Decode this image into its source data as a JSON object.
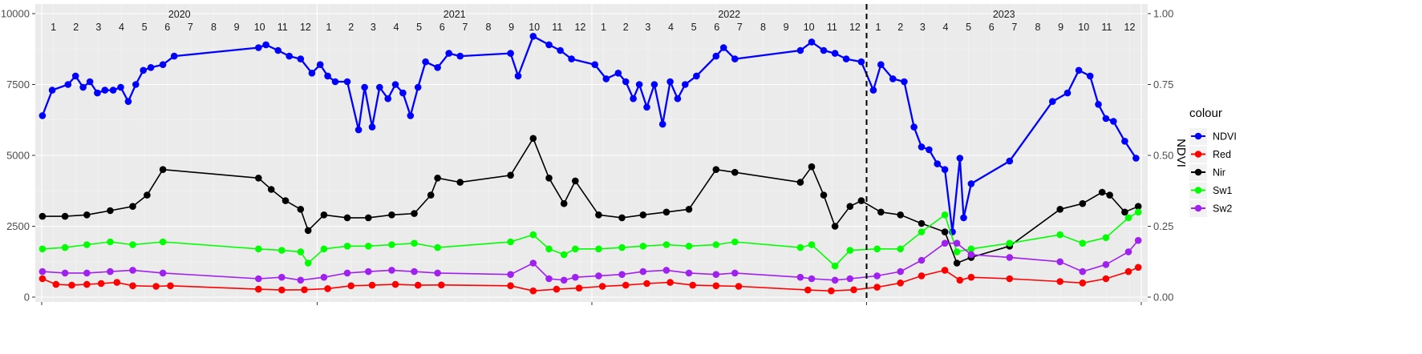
{
  "chart_data": {
    "type": "line",
    "x_range": [
      "2020-01-01",
      "2024-01-01"
    ],
    "ylim_left": [
      0,
      10000
    ],
    "ylim_right": [
      0,
      1
    ],
    "yticks_left": [
      "0",
      "2500",
      "5000",
      "7500",
      "10000"
    ],
    "yticks_right": [
      "0.00",
      "0.25",
      "0.50",
      "0.75",
      "1.00"
    ],
    "ylabel_right": "NDVI",
    "years": [
      "2020",
      "2021",
      "2022",
      "2023"
    ],
    "months": [
      "1",
      "2",
      "3",
      "4",
      "5",
      "6",
      "7",
      "8",
      "9",
      "10",
      "11",
      "12"
    ],
    "vline_date": "2023-01-01",
    "grid": true,
    "legend": {
      "title": "colour",
      "placement": "right",
      "entries": [
        "NDVI",
        "Red",
        "Nir",
        "Sw1",
        "Sw2"
      ]
    },
    "series": [
      {
        "name": "NDVI",
        "color": "#0000ff",
        "axis": "right",
        "points": [
          [
            "2020-01-02",
            0.64
          ],
          [
            "2020-01-15",
            0.73
          ],
          [
            "2020-02-05",
            0.75
          ],
          [
            "2020-02-15",
            0.78
          ],
          [
            "2020-02-25",
            0.74
          ],
          [
            "2020-03-05",
            0.76
          ],
          [
            "2020-03-15",
            0.72
          ],
          [
            "2020-03-25",
            0.73
          ],
          [
            "2020-04-05",
            0.73
          ],
          [
            "2020-04-15",
            0.74
          ],
          [
            "2020-04-25",
            0.69
          ],
          [
            "2020-05-05",
            0.75
          ],
          [
            "2020-05-15",
            0.8
          ],
          [
            "2020-05-25",
            0.81
          ],
          [
            "2020-06-10",
            0.82
          ],
          [
            "2020-06-25",
            0.85
          ],
          [
            "2020-10-15",
            0.88
          ],
          [
            "2020-10-25",
            0.89
          ],
          [
            "2020-11-10",
            0.87
          ],
          [
            "2020-11-25",
            0.85
          ],
          [
            "2020-12-10",
            0.84
          ],
          [
            "2020-12-25",
            0.79
          ],
          [
            "2021-01-05",
            0.82
          ],
          [
            "2021-01-15",
            0.78
          ],
          [
            "2021-01-25",
            0.76
          ],
          [
            "2021-02-10",
            0.76
          ],
          [
            "2021-02-25",
            0.59
          ],
          [
            "2021-03-05",
            0.74
          ],
          [
            "2021-03-15",
            0.6
          ],
          [
            "2021-03-25",
            0.74
          ],
          [
            "2021-04-05",
            0.7
          ],
          [
            "2021-04-15",
            0.75
          ],
          [
            "2021-04-25",
            0.72
          ],
          [
            "2021-05-05",
            0.64
          ],
          [
            "2021-05-15",
            0.74
          ],
          [
            "2021-05-25",
            0.83
          ],
          [
            "2021-06-10",
            0.81
          ],
          [
            "2021-06-25",
            0.86
          ],
          [
            "2021-07-10",
            0.85
          ],
          [
            "2021-09-15",
            0.86
          ],
          [
            "2021-09-25",
            0.78
          ],
          [
            "2021-10-15",
            0.92
          ],
          [
            "2021-11-05",
            0.89
          ],
          [
            "2021-11-20",
            0.87
          ],
          [
            "2021-12-05",
            0.84
          ],
          [
            "2022-01-05",
            0.82
          ],
          [
            "2022-01-20",
            0.77
          ],
          [
            "2022-02-05",
            0.79
          ],
          [
            "2022-02-15",
            0.76
          ],
          [
            "2022-02-25",
            0.7
          ],
          [
            "2022-03-05",
            0.75
          ],
          [
            "2022-03-15",
            0.67
          ],
          [
            "2022-03-25",
            0.75
          ],
          [
            "2022-04-05",
            0.61
          ],
          [
            "2022-04-15",
            0.76
          ],
          [
            "2022-04-25",
            0.7
          ],
          [
            "2022-05-05",
            0.75
          ],
          [
            "2022-05-20",
            0.78
          ],
          [
            "2022-06-15",
            0.85
          ],
          [
            "2022-06-25",
            0.88
          ],
          [
            "2022-07-10",
            0.84
          ],
          [
            "2022-10-05",
            0.87
          ],
          [
            "2022-10-20",
            0.9
          ],
          [
            "2022-11-05",
            0.87
          ],
          [
            "2022-11-20",
            0.86
          ],
          [
            "2022-12-05",
            0.84
          ],
          [
            "2022-12-25",
            0.83
          ],
          [
            "2023-01-10",
            0.73
          ],
          [
            "2023-01-20",
            0.82
          ],
          [
            "2023-02-05",
            0.77
          ],
          [
            "2023-02-20",
            0.76
          ],
          [
            "2023-03-05",
            0.6
          ],
          [
            "2023-03-15",
            0.53
          ],
          [
            "2023-03-25",
            0.52
          ],
          [
            "2023-04-05",
            0.47
          ],
          [
            "2023-04-15",
            0.45
          ],
          [
            "2023-04-25",
            0.23
          ],
          [
            "2023-05-05",
            0.49
          ],
          [
            "2023-05-10",
            0.28
          ],
          [
            "2023-05-20",
            0.4
          ],
          [
            "2023-07-10",
            0.48
          ],
          [
            "2023-09-05",
            0.69
          ],
          [
            "2023-09-25",
            0.72
          ],
          [
            "2023-10-10",
            0.8
          ],
          [
            "2023-10-25",
            0.78
          ],
          [
            "2023-11-05",
            0.68
          ],
          [
            "2023-11-15",
            0.63
          ],
          [
            "2023-11-25",
            0.62
          ],
          [
            "2023-12-10",
            0.55
          ],
          [
            "2023-12-25",
            0.49
          ]
        ]
      },
      {
        "name": "Red",
        "color": "#ff0000",
        "axis": "left",
        "points": [
          [
            "2020-01-02",
            650
          ],
          [
            "2020-01-20",
            450
          ],
          [
            "2020-02-10",
            420
          ],
          [
            "2020-03-01",
            450
          ],
          [
            "2020-03-20",
            480
          ],
          [
            "2020-04-10",
            520
          ],
          [
            "2020-05-01",
            400
          ],
          [
            "2020-06-01",
            380
          ],
          [
            "2020-06-20",
            400
          ],
          [
            "2020-10-15",
            280
          ],
          [
            "2020-11-15",
            250
          ],
          [
            "2020-12-15",
            260
          ],
          [
            "2021-01-15",
            300
          ],
          [
            "2021-02-15",
            400
          ],
          [
            "2021-03-15",
            420
          ],
          [
            "2021-04-15",
            450
          ],
          [
            "2021-05-15",
            420
          ],
          [
            "2021-06-15",
            430
          ],
          [
            "2021-09-15",
            400
          ],
          [
            "2021-10-15",
            220
          ],
          [
            "2021-11-15",
            280
          ],
          [
            "2021-12-15",
            320
          ],
          [
            "2022-01-15",
            380
          ],
          [
            "2022-02-15",
            420
          ],
          [
            "2022-03-15",
            480
          ],
          [
            "2022-04-15",
            520
          ],
          [
            "2022-05-15",
            420
          ],
          [
            "2022-06-15",
            400
          ],
          [
            "2022-07-15",
            380
          ],
          [
            "2022-10-15",
            250
          ],
          [
            "2022-11-15",
            220
          ],
          [
            "2022-12-15",
            260
          ],
          [
            "2023-01-15",
            350
          ],
          [
            "2023-02-15",
            500
          ],
          [
            "2023-03-15",
            750
          ],
          [
            "2023-04-15",
            950
          ],
          [
            "2023-05-05",
            600
          ],
          [
            "2023-05-20",
            700
          ],
          [
            "2023-07-10",
            650
          ],
          [
            "2023-09-15",
            550
          ],
          [
            "2023-10-15",
            500
          ],
          [
            "2023-11-15",
            650
          ],
          [
            "2023-12-15",
            900
          ],
          [
            "2023-12-28",
            1050
          ]
        ]
      },
      {
        "name": "Nir",
        "color": "#000000",
        "axis": "left",
        "points": [
          [
            "2020-01-02",
            2850
          ],
          [
            "2020-02-01",
            2850
          ],
          [
            "2020-03-01",
            2900
          ],
          [
            "2020-04-01",
            3050
          ],
          [
            "2020-05-01",
            3200
          ],
          [
            "2020-05-20",
            3600
          ],
          [
            "2020-06-10",
            4500
          ],
          [
            "2020-10-15",
            4200
          ],
          [
            "2020-11-01",
            3800
          ],
          [
            "2020-11-20",
            3400
          ],
          [
            "2020-12-10",
            3100
          ],
          [
            "2020-12-20",
            2350
          ],
          [
            "2021-01-10",
            2900
          ],
          [
            "2021-02-10",
            2800
          ],
          [
            "2021-03-10",
            2800
          ],
          [
            "2021-04-10",
            2900
          ],
          [
            "2021-05-10",
            2950
          ],
          [
            "2021-06-01",
            3600
          ],
          [
            "2021-06-10",
            4200
          ],
          [
            "2021-07-10",
            4050
          ],
          [
            "2021-09-15",
            4300
          ],
          [
            "2021-10-15",
            5600
          ],
          [
            "2021-11-05",
            4200
          ],
          [
            "2021-11-25",
            3300
          ],
          [
            "2021-12-10",
            4100
          ],
          [
            "2022-01-10",
            2900
          ],
          [
            "2022-02-10",
            2800
          ],
          [
            "2022-03-10",
            2900
          ],
          [
            "2022-04-10",
            3000
          ],
          [
            "2022-05-10",
            3100
          ],
          [
            "2022-06-15",
            4500
          ],
          [
            "2022-07-10",
            4400
          ],
          [
            "2022-10-05",
            4050
          ],
          [
            "2022-10-20",
            4600
          ],
          [
            "2022-11-05",
            3600
          ],
          [
            "2022-11-20",
            2500
          ],
          [
            "2022-12-10",
            3200
          ],
          [
            "2022-12-25",
            3400
          ],
          [
            "2023-01-20",
            3000
          ],
          [
            "2023-02-15",
            2900
          ],
          [
            "2023-03-15",
            2600
          ],
          [
            "2023-04-15",
            2300
          ],
          [
            "2023-05-01",
            1200
          ],
          [
            "2023-05-20",
            1400
          ],
          [
            "2023-07-10",
            1800
          ],
          [
            "2023-09-15",
            3100
          ],
          [
            "2023-10-15",
            3300
          ],
          [
            "2023-11-10",
            3700
          ],
          [
            "2023-11-20",
            3600
          ],
          [
            "2023-12-10",
            3000
          ],
          [
            "2023-12-28",
            3200
          ]
        ]
      },
      {
        "name": "Sw1",
        "color": "#00ff00",
        "axis": "left",
        "points": [
          [
            "2020-01-02",
            1700
          ],
          [
            "2020-02-01",
            1750
          ],
          [
            "2020-03-01",
            1850
          ],
          [
            "2020-04-01",
            1950
          ],
          [
            "2020-05-01",
            1850
          ],
          [
            "2020-06-10",
            1950
          ],
          [
            "2020-10-15",
            1700
          ],
          [
            "2020-11-15",
            1650
          ],
          [
            "2020-12-10",
            1600
          ],
          [
            "2020-12-20",
            1200
          ],
          [
            "2021-01-10",
            1700
          ],
          [
            "2021-02-10",
            1800
          ],
          [
            "2021-03-10",
            1800
          ],
          [
            "2021-04-10",
            1850
          ],
          [
            "2021-05-10",
            1900
          ],
          [
            "2021-06-10",
            1750
          ],
          [
            "2021-09-15",
            1950
          ],
          [
            "2021-10-15",
            2200
          ],
          [
            "2021-11-05",
            1700
          ],
          [
            "2021-11-25",
            1500
          ],
          [
            "2021-12-10",
            1700
          ],
          [
            "2022-01-10",
            1700
          ],
          [
            "2022-02-10",
            1750
          ],
          [
            "2022-03-10",
            1800
          ],
          [
            "2022-04-10",
            1850
          ],
          [
            "2022-05-10",
            1800
          ],
          [
            "2022-06-15",
            1850
          ],
          [
            "2022-07-10",
            1950
          ],
          [
            "2022-10-05",
            1750
          ],
          [
            "2022-10-20",
            1850
          ],
          [
            "2022-11-20",
            1100
          ],
          [
            "2022-12-10",
            1650
          ],
          [
            "2023-01-15",
            1700
          ],
          [
            "2023-02-15",
            1700
          ],
          [
            "2023-03-15",
            2300
          ],
          [
            "2023-04-15",
            2900
          ],
          [
            "2023-05-01",
            1600
          ],
          [
            "2023-05-20",
            1700
          ],
          [
            "2023-07-10",
            1900
          ],
          [
            "2023-09-15",
            2200
          ],
          [
            "2023-10-15",
            1900
          ],
          [
            "2023-11-15",
            2100
          ],
          [
            "2023-12-15",
            2800
          ],
          [
            "2023-12-28",
            3000
          ]
        ]
      },
      {
        "name": "Sw2",
        "color": "#a020f0",
        "axis": "left",
        "points": [
          [
            "2020-01-02",
            900
          ],
          [
            "2020-02-01",
            850
          ],
          [
            "2020-03-01",
            850
          ],
          [
            "2020-04-01",
            900
          ],
          [
            "2020-05-01",
            950
          ],
          [
            "2020-06-10",
            850
          ],
          [
            "2020-10-15",
            650
          ],
          [
            "2020-11-15",
            700
          ],
          [
            "2020-12-10",
            600
          ],
          [
            "2021-01-10",
            700
          ],
          [
            "2021-02-10",
            850
          ],
          [
            "2021-03-10",
            900
          ],
          [
            "2021-04-10",
            950
          ],
          [
            "2021-05-10",
            900
          ],
          [
            "2021-06-10",
            850
          ],
          [
            "2021-09-15",
            800
          ],
          [
            "2021-10-15",
            1200
          ],
          [
            "2021-11-05",
            650
          ],
          [
            "2021-11-25",
            600
          ],
          [
            "2021-12-10",
            700
          ],
          [
            "2022-01-10",
            750
          ],
          [
            "2022-02-10",
            800
          ],
          [
            "2022-03-10",
            900
          ],
          [
            "2022-04-10",
            950
          ],
          [
            "2022-05-10",
            850
          ],
          [
            "2022-06-15",
            800
          ],
          [
            "2022-07-10",
            850
          ],
          [
            "2022-10-05",
            700
          ],
          [
            "2022-10-20",
            650
          ],
          [
            "2022-11-20",
            600
          ],
          [
            "2022-12-10",
            650
          ],
          [
            "2023-01-15",
            750
          ],
          [
            "2023-02-15",
            900
          ],
          [
            "2023-03-15",
            1300
          ],
          [
            "2023-04-15",
            1900
          ],
          [
            "2023-05-01",
            1900
          ],
          [
            "2023-05-20",
            1500
          ],
          [
            "2023-07-10",
            1400
          ],
          [
            "2023-09-15",
            1250
          ],
          [
            "2023-10-15",
            900
          ],
          [
            "2023-11-15",
            1150
          ],
          [
            "2023-12-15",
            1600
          ],
          [
            "2023-12-28",
            2000
          ]
        ]
      }
    ]
  }
}
